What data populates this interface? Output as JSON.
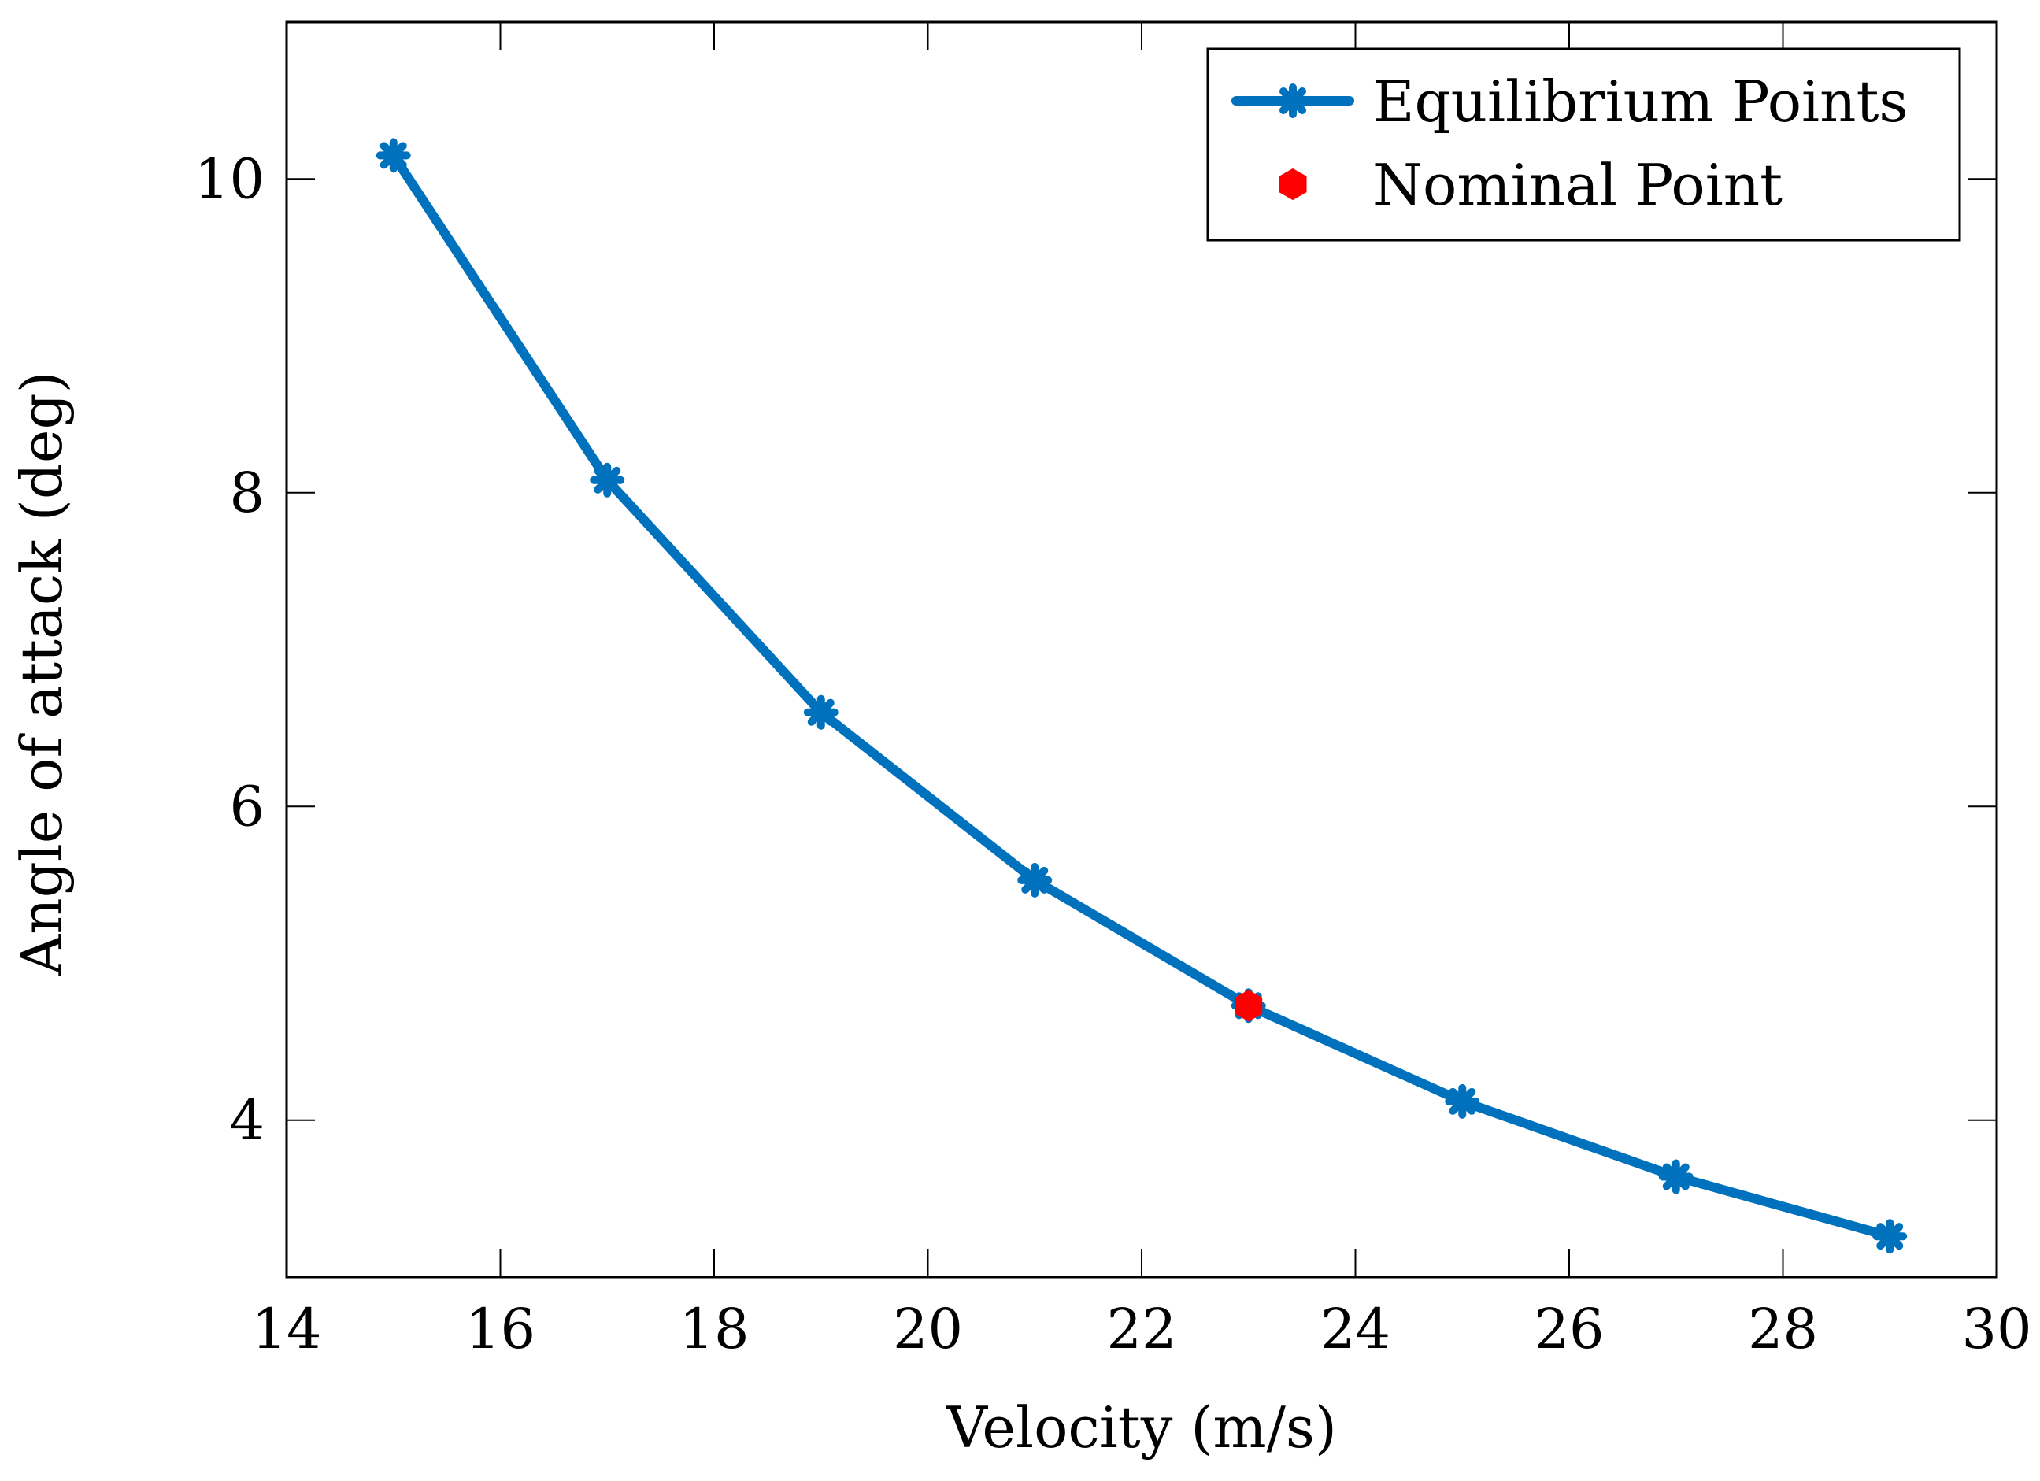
{
  "chart_data": {
    "type": "line",
    "title": "",
    "xlabel": "Velocity (m/s)",
    "ylabel": "Angle of attack (deg)",
    "xlim": [
      14,
      30
    ],
    "ylim": [
      3.0,
      11.0
    ],
    "xticks": [
      14,
      16,
      18,
      20,
      22,
      24,
      26,
      28,
      30
    ],
    "yticks": [
      4,
      6,
      8,
      10
    ],
    "xtick_labels": [
      "14",
      "16",
      "18",
      "20",
      "22",
      "24",
      "26",
      "28",
      "30"
    ],
    "ytick_labels": [
      "4",
      "6",
      "8",
      "10"
    ],
    "grid": false,
    "legend_position": "top-right",
    "series": [
      {
        "name": "Equilibrium Points",
        "color": "#0072BD",
        "marker": "asterisk",
        "x": [
          15,
          17,
          19,
          21,
          23,
          25,
          27,
          29
        ],
        "y": [
          10.15,
          8.08,
          6.6,
          5.53,
          4.73,
          4.12,
          3.64,
          3.26
        ]
      },
      {
        "name": "Nominal Point",
        "color": "#FF0000",
        "marker": "hexagon",
        "x": [
          23
        ],
        "y": [
          4.73
        ]
      }
    ]
  }
}
